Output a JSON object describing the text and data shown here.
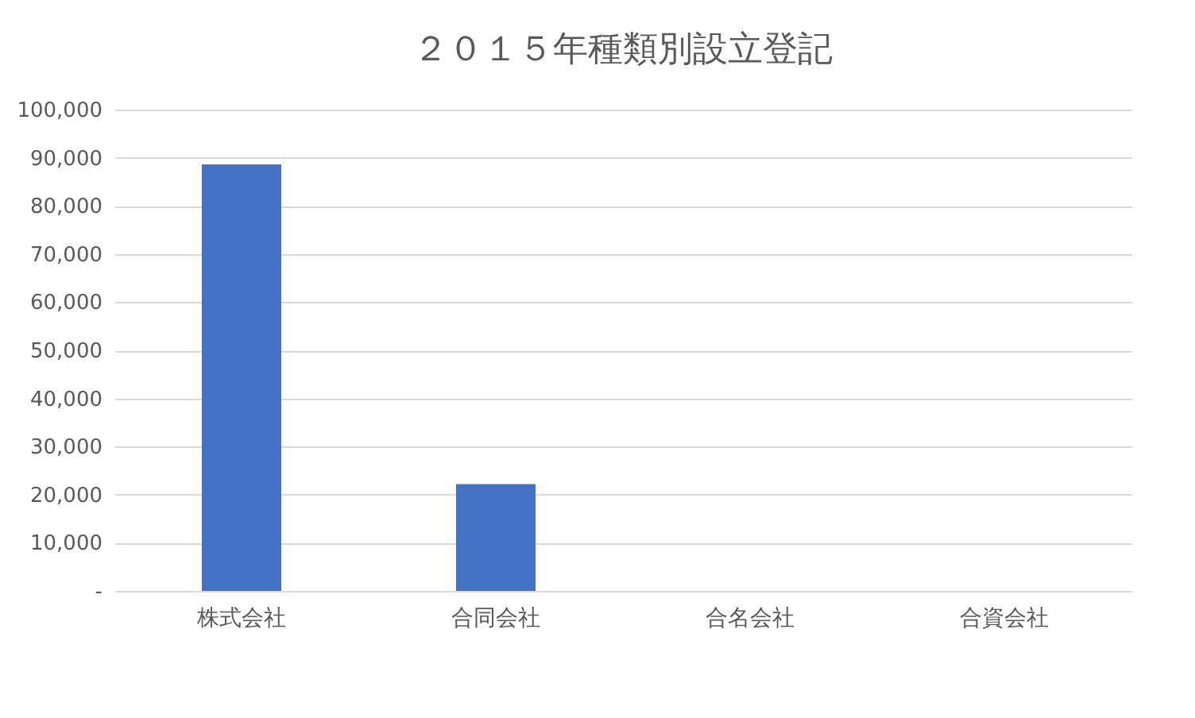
{
  "chart_data": {
    "type": "bar",
    "title": "２０１５年種類別設立登記",
    "categories": [
      "株式会社",
      "合同会社",
      "合名会社",
      "合資会社"
    ],
    "values": [
      88600,
      22200,
      0,
      0
    ],
    "color": "#4472c4",
    "ylim": [
      0,
      100000
    ],
    "yticks": [
      {
        "value": 0,
        "label": "-"
      },
      {
        "value": 10000,
        "label": "10,000"
      },
      {
        "value": 20000,
        "label": "20,000"
      },
      {
        "value": 30000,
        "label": "30,000"
      },
      {
        "value": 40000,
        "label": "40,000"
      },
      {
        "value": 50000,
        "label": "50,000"
      },
      {
        "value": 60000,
        "label": "60,000"
      },
      {
        "value": 70000,
        "label": "70,000"
      },
      {
        "value": 80000,
        "label": "80,000"
      },
      {
        "value": 90000,
        "label": "90,000"
      },
      {
        "value": 100000,
        "label": "100,000"
      }
    ],
    "grid": "y"
  }
}
